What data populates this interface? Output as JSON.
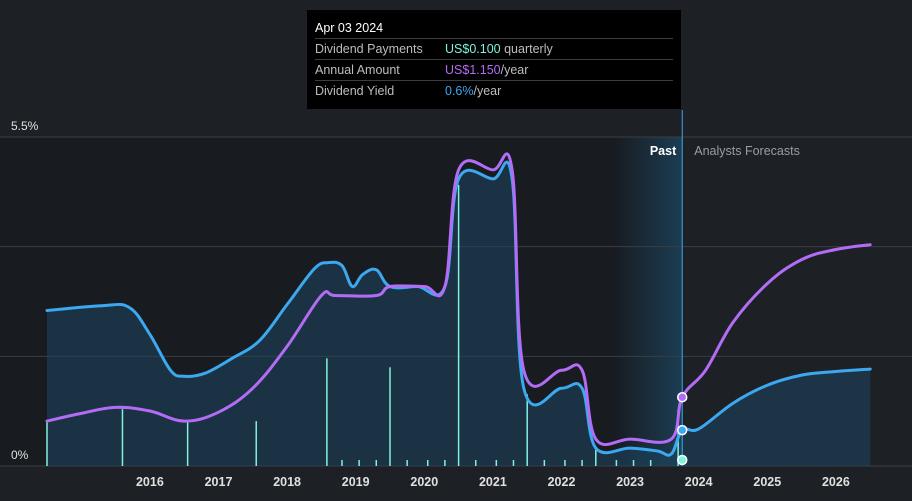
{
  "tooltip": {
    "date": "Apr 03 2024",
    "rows": [
      {
        "label": "Dividend Payments",
        "value": "US$0.100",
        "unit": " quarterly",
        "color": "#7ff3dd"
      },
      {
        "label": "Annual Amount",
        "value": "US$1.150",
        "unit": "/year",
        "color": "#b36cf5"
      },
      {
        "label": "Dividend Yield",
        "value": "0.6%",
        "unit": "/year",
        "color": "#3ca8f0"
      }
    ]
  },
  "chart_data": {
    "type": "line",
    "title": "",
    "ylabel": "",
    "ylim": [
      0,
      5.5
    ],
    "y_tick_labels": [
      {
        "value": 5.5,
        "label": "5.5%"
      },
      {
        "value": 0,
        "label": "0%"
      }
    ],
    "xlim": [
      2015.0,
      2027.5
    ],
    "x_ticks": [
      2016,
      2017,
      2018,
      2019,
      2020,
      2021,
      2022,
      2023,
      2024,
      2025,
      2026
    ],
    "regions": {
      "past_label": "Past",
      "forecast_label": "Analysts Forecasts",
      "divider_x": 2024.26
    },
    "series": [
      {
        "name": "Dividend Yield",
        "color": "#3ca8f0",
        "points": [
          [
            2015.0,
            2.6
          ],
          [
            2015.8,
            2.68
          ],
          [
            2016.2,
            2.65
          ],
          [
            2016.5,
            2.2
          ],
          [
            2016.8,
            1.6
          ],
          [
            2017.0,
            1.5
          ],
          [
            2017.3,
            1.55
          ],
          [
            2017.7,
            1.8
          ],
          [
            2018.1,
            2.1
          ],
          [
            2018.5,
            2.7
          ],
          [
            2018.9,
            3.3
          ],
          [
            2019.1,
            3.4
          ],
          [
            2019.3,
            3.35
          ],
          [
            2019.45,
            3.0
          ],
          [
            2019.6,
            3.2
          ],
          [
            2019.8,
            3.28
          ],
          [
            2020.0,
            3.0
          ],
          [
            2020.4,
            3.0
          ],
          [
            2020.8,
            3.0
          ],
          [
            2021.0,
            4.8
          ],
          [
            2021.5,
            4.8
          ],
          [
            2021.78,
            4.8
          ],
          [
            2021.95,
            1.3
          ],
          [
            2022.5,
            1.3
          ],
          [
            2022.8,
            1.3
          ],
          [
            2023.0,
            0.3
          ],
          [
            2023.5,
            0.3
          ],
          [
            2023.9,
            0.25
          ],
          [
            2024.1,
            0.2
          ],
          [
            2024.26,
            0.6
          ],
          [
            2024.5,
            0.62
          ],
          [
            2025.0,
            1.05
          ],
          [
            2025.5,
            1.35
          ],
          [
            2026.0,
            1.52
          ],
          [
            2026.5,
            1.58
          ],
          [
            2027.0,
            1.62
          ]
        ]
      },
      {
        "name": "Annual Amount",
        "color": "#b36cf5",
        "points": [
          [
            2015.0,
            0.75
          ],
          [
            2015.5,
            0.88
          ],
          [
            2016.0,
            0.98
          ],
          [
            2016.5,
            0.92
          ],
          [
            2017.0,
            0.75
          ],
          [
            2017.5,
            0.9
          ],
          [
            2018.0,
            1.3
          ],
          [
            2018.5,
            2.0
          ],
          [
            2019.0,
            2.85
          ],
          [
            2019.2,
            2.85
          ],
          [
            2019.8,
            2.85
          ],
          [
            2020.0,
            3.0
          ],
          [
            2020.5,
            3.0
          ],
          [
            2020.8,
            3.0
          ],
          [
            2021.0,
            4.95
          ],
          [
            2021.5,
            4.95
          ],
          [
            2021.78,
            4.95
          ],
          [
            2021.95,
            1.6
          ],
          [
            2022.5,
            1.6
          ],
          [
            2022.8,
            1.6
          ],
          [
            2023.0,
            0.45
          ],
          [
            2023.5,
            0.45
          ],
          [
            2024.1,
            0.45
          ],
          [
            2024.26,
            1.15
          ],
          [
            2024.6,
            1.6
          ],
          [
            2025.0,
            2.4
          ],
          [
            2025.5,
            3.05
          ],
          [
            2026.0,
            3.45
          ],
          [
            2026.5,
            3.62
          ],
          [
            2027.0,
            3.7
          ]
        ]
      }
    ],
    "dividend_payments": {
      "color": "#7ff3dd",
      "bars": [
        [
          2015.0,
          0.75
        ],
        [
          2016.1,
          0.95
        ],
        [
          2017.05,
          0.75
        ],
        [
          2018.05,
          0.75
        ],
        [
          2019.08,
          1.8
        ],
        [
          2020.0,
          1.65
        ],
        [
          2021.0,
          4.7
        ],
        [
          2022.0,
          1.2
        ],
        [
          2023.0,
          0.3
        ],
        [
          2024.2,
          0.95
        ]
      ],
      "ticks": [
        2019.3,
        2019.55,
        2019.8,
        2020.25,
        2020.55,
        2020.8,
        2021.25,
        2021.55,
        2021.8,
        2022.25,
        2022.55,
        2022.8,
        2023.3,
        2023.55,
        2023.8
      ]
    },
    "markers": [
      {
        "series": "Annual Amount",
        "x": 2024.26,
        "y": 1.15,
        "color": "#b36cf5"
      },
      {
        "series": "Dividend Yield",
        "x": 2024.26,
        "y": 0.6,
        "color": "#3ca8f0"
      },
      {
        "series": "Dividend Payments",
        "x": 2024.26,
        "y": 0.1,
        "color": "#7ff3dd"
      }
    ]
  }
}
